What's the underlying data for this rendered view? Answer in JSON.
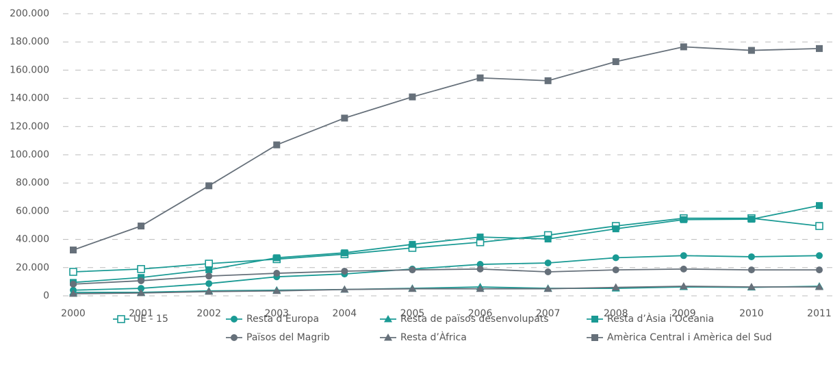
{
  "chart_data": {
    "type": "line",
    "categories": [
      "2000",
      "2001",
      "2002",
      "2003",
      "2004",
      "2005",
      "2006",
      "2007",
      "2008",
      "2009",
      "2010",
      "2011"
    ],
    "ylim": [
      0,
      200000
    ],
    "yticks": [
      0,
      {
        "value": 20000,
        "label": "20.000"
      },
      {
        "value": 40000,
        "label": "40.000"
      },
      {
        "value": 60000,
        "label": "60.000"
      },
      {
        "value": 80000,
        "label": "80.000"
      },
      {
        "value": 100000,
        "label": "100.000"
      },
      {
        "value": 120000,
        "label": "120.000"
      },
      {
        "value": 140000,
        "label": "140.000"
      },
      {
        "value": 160000,
        "label": "160.000"
      },
      {
        "value": 180000,
        "label": "180.000"
      },
      {
        "value": 200000,
        "label": "200.000"
      }
    ],
    "grid": true,
    "series": [
      {
        "name": "UE - 15",
        "color": "#1a9a94",
        "marker": "square-open",
        "values": [
          17000,
          19000,
          22800,
          26000,
          29500,
          34000,
          38000,
          43000,
          49500,
          55000,
          55000,
          49500
        ]
      },
      {
        "name": "Resta d’Europa",
        "color": "#1a9a94",
        "marker": "circle",
        "values": [
          4000,
          5300,
          8700,
          13500,
          15500,
          19000,
          22300,
          23300,
          27000,
          28500,
          27700,
          28500
        ]
      },
      {
        "name": "Resta de països desenvolupats",
        "color": "#1a9a94",
        "marker": "triangle",
        "values": [
          2500,
          2500,
          3500,
          4000,
          4500,
          5300,
          6300,
          5300,
          5300,
          6300,
          6000,
          6800
        ]
      },
      {
        "name": "Resta d’Àsia i Oceania",
        "color": "#1a9a94",
        "marker": "square",
        "values": [
          9500,
          13000,
          18500,
          27000,
          30500,
          36500,
          41700,
          40300,
          47500,
          54000,
          54300,
          64000
        ]
      },
      {
        "name": "Països del Magrib",
        "color": "#66707a",
        "marker": "circle",
        "values": [
          8300,
          10700,
          14000,
          16000,
          17500,
          18400,
          19000,
          17000,
          18400,
          19000,
          18400,
          18400
        ]
      },
      {
        "name": "Resta d’Àfrica",
        "color": "#66707a",
        "marker": "triangle",
        "values": [
          1500,
          2000,
          3000,
          3500,
          4500,
          5000,
          5000,
          5000,
          6000,
          6800,
          6300,
          6300
        ]
      },
      {
        "name": "Amèrica Central i Amèrica del Sud",
        "color": "#66707a",
        "marker": "square",
        "values": [
          32500,
          49500,
          78000,
          107000,
          126000,
          141000,
          154500,
          152500,
          166000,
          176500,
          174000,
          175300
        ]
      }
    ]
  }
}
